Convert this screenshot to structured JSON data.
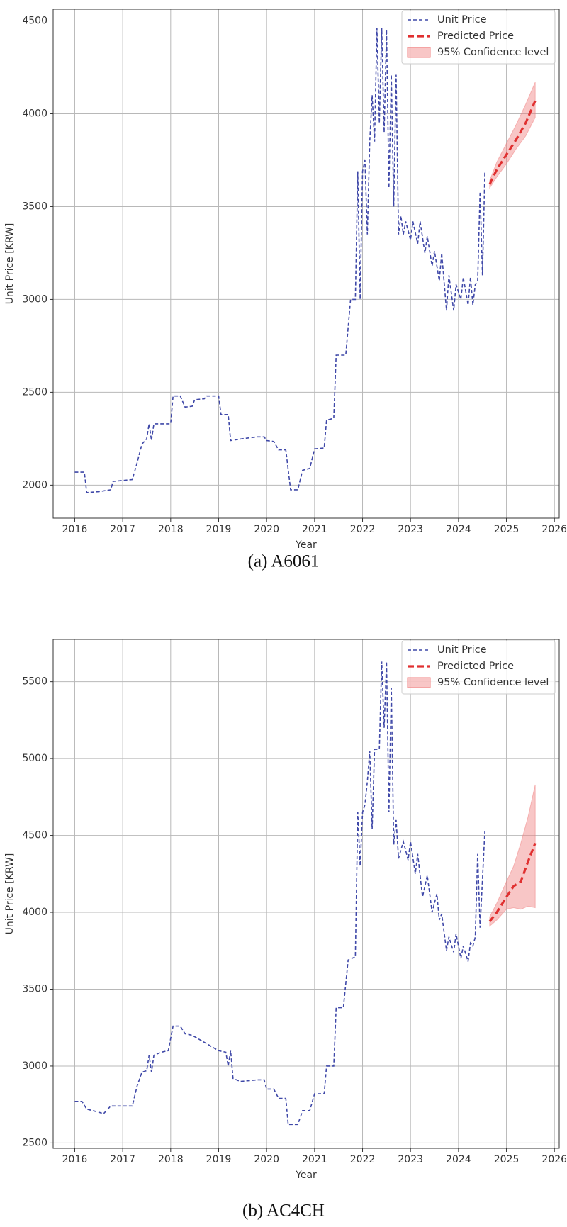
{
  "chart_data": [
    {
      "type": "line",
      "caption": "(a) A6061",
      "xlabel": "Year",
      "ylabel": "Unit Price [KRW]",
      "xlim": [
        2015.55,
        2026.1
      ],
      "xticks": [
        2016,
        2017,
        2018,
        2019,
        2020,
        2021,
        2022,
        2023,
        2024,
        2025,
        2026
      ],
      "ylim": [
        1822,
        4563
      ],
      "yticks": [
        2000,
        2500,
        3000,
        3500,
        4000,
        4500
      ],
      "grid": true,
      "legend": "upper right",
      "series": [
        {
          "name": "Unit Price",
          "color": "#3f48a8",
          "style": "dashed",
          "x": [
            2016.0,
            2016.2,
            2016.25,
            2016.5,
            2016.75,
            2016.8,
            2017.0,
            2017.2,
            2017.3,
            2017.4,
            2017.5,
            2017.55,
            2017.6,
            2017.65,
            2018.0,
            2018.05,
            2018.2,
            2018.3,
            2018.45,
            2018.5,
            2018.7,
            2018.75,
            2019.0,
            2019.05,
            2019.2,
            2019.25,
            2019.5,
            2019.8,
            2019.95,
            2020.0,
            2020.15,
            2020.25,
            2020.4,
            2020.5,
            2020.65,
            2020.75,
            2020.9,
            2021.0,
            2021.2,
            2021.25,
            2021.4,
            2021.45,
            2021.65,
            2021.75,
            2021.85,
            2021.9,
            2021.95,
            2022.0,
            2022.05,
            2022.1,
            2022.15,
            2022.2,
            2022.25,
            2022.3,
            2022.35,
            2022.4,
            2022.45,
            2022.5,
            2022.55,
            2022.6,
            2022.65,
            2022.7,
            2022.75,
            2022.8,
            2022.85,
            2022.9,
            2023.0,
            2023.05,
            2023.15,
            2023.2,
            2023.3,
            2023.35,
            2023.45,
            2023.5,
            2023.6,
            2023.65,
            2023.75,
            2023.8,
            2023.9,
            2023.95,
            2024.05,
            2024.1,
            2024.2,
            2024.25,
            2024.3,
            2024.35,
            2024.4,
            2024.45,
            2024.5,
            2024.55
          ],
          "values": [
            2070,
            2070,
            1960,
            1965,
            1975,
            2020,
            2025,
            2030,
            2120,
            2220,
            2250,
            2330,
            2240,
            2330,
            2330,
            2480,
            2480,
            2420,
            2425,
            2460,
            2465,
            2480,
            2480,
            2380,
            2380,
            2240,
            2250,
            2260,
            2260,
            2240,
            2235,
            2190,
            2190,
            1975,
            1975,
            2080,
            2090,
            2195,
            2200,
            2350,
            2360,
            2700,
            2700,
            3000,
            3000,
            3690,
            3000,
            3690,
            3750,
            3350,
            3850,
            4100,
            3850,
            4460,
            3950,
            4460,
            3900,
            4450,
            3600,
            4210,
            3500,
            4210,
            3350,
            3450,
            3350,
            3420,
            3320,
            3420,
            3300,
            3420,
            3250,
            3340,
            3180,
            3260,
            3100,
            3250,
            2940,
            3130,
            2940,
            3080,
            3000,
            3120,
            2970,
            3120,
            2970,
            3080,
            3100,
            3580,
            3130,
            3690
          ]
        },
        {
          "name": "Predicted Price",
          "color": "#e03030",
          "style": "dashed-bold",
          "x": [
            2024.65,
            2024.8,
            2025.0,
            2025.2,
            2025.4,
            2025.6
          ],
          "values": [
            3620,
            3700,
            3780,
            3860,
            3950,
            4070
          ]
        }
      ],
      "band": {
        "name": "95% Confidence level",
        "color": "#f08080",
        "x": [
          2024.65,
          2024.8,
          2025.0,
          2025.2,
          2025.4,
          2025.6
        ],
        "lower": [
          3600,
          3660,
          3730,
          3810,
          3880,
          3980
        ],
        "upper": [
          3640,
          3740,
          3840,
          3940,
          4050,
          4170
        ]
      }
    },
    {
      "type": "line",
      "caption": "(b) AC4CH",
      "xlabel": "Year",
      "ylabel": "Unit Price [KRW]",
      "xlim": [
        2015.55,
        2026.1
      ],
      "xticks": [
        2016,
        2017,
        2018,
        2019,
        2020,
        2021,
        2022,
        2023,
        2024,
        2025,
        2026
      ],
      "ylim": [
        2465,
        5775
      ],
      "yticks": [
        2500,
        3000,
        3500,
        4000,
        4500,
        5000,
        5500
      ],
      "grid": true,
      "legend": "upper right",
      "series": [
        {
          "name": "Unit Price",
          "color": "#3f48a8",
          "style": "dashed",
          "x": [
            2016.0,
            2016.15,
            2016.25,
            2016.5,
            2016.6,
            2016.75,
            2017.0,
            2017.2,
            2017.3,
            2017.4,
            2017.5,
            2017.55,
            2017.6,
            2017.65,
            2017.8,
            2017.95,
            2018.05,
            2018.2,
            2018.3,
            2018.45,
            2019.0,
            2019.15,
            2019.2,
            2019.25,
            2019.3,
            2019.45,
            2019.8,
            2019.95,
            2020.0,
            2020.15,
            2020.25,
            2020.4,
            2020.45,
            2020.65,
            2020.75,
            2020.9,
            2021.0,
            2021.2,
            2021.25,
            2021.4,
            2021.45,
            2021.6,
            2021.7,
            2021.85,
            2021.9,
            2021.95,
            2022.0,
            2022.05,
            2022.1,
            2022.15,
            2022.2,
            2022.25,
            2022.35,
            2022.4,
            2022.45,
            2022.5,
            2022.55,
            2022.6,
            2022.65,
            2022.7,
            2022.75,
            2022.85,
            2022.95,
            2023.0,
            2023.1,
            2023.15,
            2023.25,
            2023.35,
            2023.45,
            2023.55,
            2023.6,
            2023.65,
            2023.75,
            2023.8,
            2023.9,
            2023.95,
            2024.05,
            2024.1,
            2024.2,
            2024.25,
            2024.3,
            2024.35,
            2024.4,
            2024.45,
            2024.55
          ],
          "values": [
            2770,
            2770,
            2720,
            2700,
            2690,
            2740,
            2740,
            2740,
            2870,
            2960,
            2970,
            3070,
            2960,
            3070,
            3090,
            3100,
            3260,
            3260,
            3210,
            3200,
            3100,
            3090,
            3000,
            3100,
            2920,
            2900,
            2910,
            2910,
            2850,
            2850,
            2790,
            2790,
            2620,
            2620,
            2710,
            2710,
            2820,
            2820,
            3000,
            3000,
            3380,
            3380,
            3690,
            3710,
            4650,
            4300,
            4650,
            4700,
            4850,
            5050,
            4540,
            5060,
            5060,
            5630,
            5200,
            5630,
            4650,
            5460,
            4440,
            4600,
            4350,
            4460,
            4340,
            4460,
            4250,
            4380,
            4100,
            4240,
            4000,
            4120,
            3950,
            3990,
            3750,
            3840,
            3740,
            3860,
            3700,
            3780,
            3680,
            3800,
            3780,
            3840,
            4380,
            3900,
            4530
          ]
        },
        {
          "name": "Predicted Price",
          "color": "#e03030",
          "style": "dashed-bold",
          "x": [
            2024.65,
            2024.8,
            2025.0,
            2025.15,
            2025.3,
            2025.45,
            2025.6
          ],
          "values": [
            3940,
            4000,
            4100,
            4170,
            4200,
            4330,
            4450
          ]
        }
      ],
      "band": {
        "name": "95% Confidence level",
        "color": "#f08080",
        "x": [
          2024.65,
          2024.8,
          2025.0,
          2025.15,
          2025.3,
          2025.45,
          2025.6
        ],
        "lower": [
          3910,
          3950,
          4020,
          4030,
          4020,
          4040,
          4030
        ],
        "upper": [
          3970,
          4060,
          4200,
          4300,
          4450,
          4620,
          4830
        ]
      }
    }
  ]
}
